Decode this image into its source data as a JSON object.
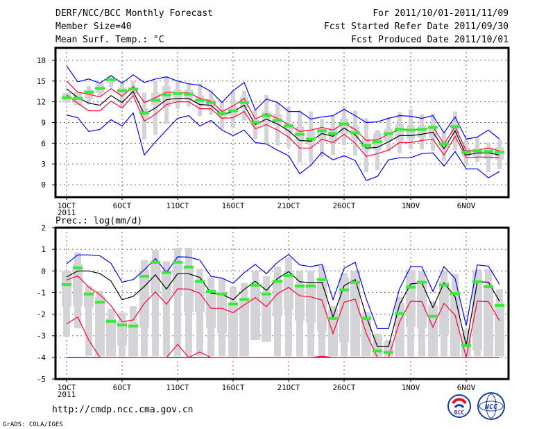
{
  "header": {
    "title": "DERF/NCC/BCC Monthly Forecast",
    "member_size": "Member Size=40",
    "variable": "Mean Surf. Temp.: °C",
    "period": "For 2011/10/01-2011/11/09",
    "started": "Fcst Started Refer Date 2011/09/30",
    "produced": "Fcst Produced Date 2011/10/01"
  },
  "footer": {
    "url": "http://cmdp.ncc.cma.gov.cn",
    "grads": "GrADS: COLA/IGES",
    "logo_bcc": "BCC",
    "logo_ncc": "NCC"
  },
  "colors": {
    "blue": "#0000ff",
    "red": "#ff0033",
    "black": "#000000",
    "green": "#33ee33",
    "gray": "#d3d3d8"
  },
  "chart_data": [
    {
      "type": "line",
      "title": "Mean Surf. Temp.: °C",
      "x_ticks": [
        {
          "day": 0,
          "label": "1OCT"
        },
        {
          "day": 5,
          "label": "6OCT"
        },
        {
          "day": 10,
          "label": "11OCT"
        },
        {
          "day": 15,
          "label": "16OCT"
        },
        {
          "day": 20,
          "label": "21OCT"
        },
        {
          "day": 25,
          "label": "26OCT"
        },
        {
          "day": 31,
          "label": "1NOV"
        },
        {
          "day": 36,
          "label": "6NOV"
        }
      ],
      "year_label": "2011",
      "y_ticks": [
        0,
        3,
        6,
        9,
        12,
        15,
        18
      ],
      "ylim": [
        -1.8,
        19.8
      ],
      "grid": true,
      "series": {
        "max": [
          17.2,
          14.9,
          15.3,
          14.7,
          15.8,
          14.7,
          15.9,
          14.8,
          15.3,
          15.6,
          15.0,
          14.6,
          14.4,
          13.5,
          11.9,
          13.6,
          14.8,
          10.8,
          12.4,
          11.9,
          10.6,
          10.6,
          9.5,
          9.8,
          10.0,
          10.9,
          10.0,
          9.0,
          9.1,
          9.6,
          10.0,
          9.9,
          9.6,
          10.0,
          7.5,
          9.8,
          6.6,
          6.9,
          7.9,
          6.6
        ],
        "upper": [
          15.0,
          13.4,
          13.1,
          12.7,
          13.9,
          12.8,
          14.2,
          11.9,
          12.6,
          13.4,
          13.3,
          13.3,
          12.5,
          12.1,
          10.6,
          11.4,
          12.5,
          9.5,
          10.3,
          9.6,
          8.7,
          7.7,
          7.9,
          8.3,
          7.9,
          8.9,
          8.0,
          6.4,
          6.5,
          7.3,
          8.0,
          8.0,
          8.0,
          8.4,
          5.9,
          8.4,
          4.9,
          5.0,
          5.3,
          4.9
        ],
        "mean": [
          13.9,
          12.6,
          11.8,
          11.5,
          12.9,
          11.9,
          13.5,
          10.2,
          11.1,
          12.3,
          12.5,
          12.5,
          11.6,
          11.5,
          10.1,
          10.6,
          11.5,
          8.7,
          9.5,
          8.8,
          7.8,
          6.4,
          6.3,
          7.4,
          7.0,
          8.2,
          7.2,
          5.3,
          5.4,
          6.2,
          7.1,
          7.1,
          7.3,
          7.6,
          5.2,
          7.8,
          4.3,
          4.6,
          4.6,
          4.3
        ],
        "lower": [
          13.0,
          11.8,
          10.7,
          10.7,
          12.1,
          11.1,
          12.9,
          9.2,
          10.2,
          11.6,
          12.0,
          12.0,
          11.0,
          11.0,
          9.6,
          9.7,
          10.6,
          8.1,
          8.7,
          7.9,
          6.9,
          5.3,
          5.3,
          6.6,
          6.1,
          7.3,
          6.0,
          4.1,
          4.5,
          5.0,
          6.1,
          6.1,
          6.4,
          6.6,
          4.3,
          7.0,
          3.9,
          4.0,
          4.0,
          3.9
        ],
        "min": [
          10.1,
          9.7,
          7.7,
          8.0,
          9.4,
          8.5,
          10.4,
          4.3,
          6.2,
          7.9,
          9.6,
          10.0,
          8.5,
          9.3,
          7.9,
          7.1,
          7.9,
          6.1,
          5.9,
          5.0,
          4.2,
          1.6,
          2.8,
          4.7,
          3.6,
          4.2,
          3.5,
          0.6,
          1.2,
          3.6,
          3.9,
          3.9,
          4.5,
          4.6,
          2.7,
          4.8,
          2.3,
          2.3,
          1.0,
          1.9
        ],
        "green": [
          12.6,
          12.5,
          13.4,
          13.95,
          15.2,
          13.6,
          13.85,
          10.4,
          12.2,
          13.0,
          13.2,
          13.1,
          12.2,
          11.9,
          10.3,
          10.7,
          11.9,
          9.0,
          10.0,
          9.3,
          8.5,
          7.3,
          6.6,
          7.8,
          7.4,
          8.8,
          7.5,
          5.7,
          6.2,
          7.4,
          8.0,
          7.9,
          8.0,
          8.3,
          5.9,
          8.4,
          4.7,
          4.9,
          4.8,
          4.7
        ],
        "gray_bar_low": [
          11.9,
          11.5,
          11.6,
          12.7,
          14.1,
          11.1,
          12.9,
          6.5,
          7.2,
          8.8,
          11.0,
          11.3,
          9.9,
          10.1,
          8.1,
          8.2,
          9.3,
          6.6,
          6.0,
          5.7,
          5.4,
          3.2,
          3.2,
          4.0,
          4.3,
          5.7,
          4.2,
          1.8,
          2.1,
          4.8,
          4.6,
          5.2,
          5.1,
          4.9,
          3.4,
          5.0,
          2.9,
          3.3,
          1.8,
          2.3
        ],
        "gray_bar_high": [
          13.3,
          13.4,
          14.3,
          14.7,
          15.8,
          14.7,
          15.0,
          13.3,
          15.1,
          15.7,
          15.2,
          14.7,
          14.7,
          13.6,
          12.1,
          13.6,
          13.6,
          10.8,
          13.0,
          11.9,
          11.3,
          10.8,
          10.6,
          9.5,
          10.0,
          11.4,
          10.7,
          9.6,
          7.9,
          9.8,
          10.5,
          10.9,
          10.2,
          10.3,
          7.6,
          10.6,
          6.5,
          6.8,
          6.1,
          6.5
        ],
        "gray_box_low": [
          11.9,
          11.5,
          12.4,
          13.3,
          14.7,
          13.0,
          13.2,
          9.7,
          11.5,
          11.3,
          12.1,
          12.3,
          11.5,
          11.3,
          9.7,
          10.0,
          11.1,
          8.5,
          8.7,
          8.6,
          7.6,
          6.2,
          5.8,
          6.5,
          6.1,
          7.3,
          6.6,
          5.0,
          5.0,
          6.3,
          6.3,
          6.6,
          6.8,
          6.8,
          5.3,
          7.3,
          4.0,
          4.0,
          3.7,
          3.6
        ],
        "gray_box_high": [
          13.3,
          13.4,
          13.7,
          14.6,
          15.5,
          14.1,
          14.0,
          11.1,
          13.3,
          14.3,
          13.8,
          13.8,
          12.9,
          12.4,
          10.9,
          11.3,
          12.7,
          9.4,
          10.6,
          10.2,
          8.9,
          8.4,
          7.8,
          8.1,
          8.3,
          9.6,
          8.5,
          6.7,
          7.5,
          8.1,
          8.8,
          8.6,
          8.6,
          8.6,
          6.2,
          8.9,
          5.4,
          5.3,
          5.4,
          5.4
        ]
      }
    },
    {
      "type": "line",
      "title": "Prec.: log(mm/d)",
      "x_ticks": [
        {
          "day": 0,
          "label": "1OCT"
        },
        {
          "day": 5,
          "label": "6OCT"
        },
        {
          "day": 10,
          "label": "11OCT"
        },
        {
          "day": 15,
          "label": "16OCT"
        },
        {
          "day": 20,
          "label": "21OCT"
        },
        {
          "day": 25,
          "label": "26OCT"
        },
        {
          "day": 31,
          "label": "1NOV"
        },
        {
          "day": 36,
          "label": "6NOV"
        }
      ],
      "year_label": "2011",
      "y_ticks": [
        -5,
        -4,
        -3,
        -2,
        -1,
        0,
        1,
        2
      ],
      "ylim": [
        -5,
        2
      ],
      "grid": true,
      "series": {
        "max": [
          0.33,
          0.74,
          0.74,
          0.7,
          0.35,
          -0.52,
          -0.4,
          0.05,
          0.57,
          -0.07,
          0.65,
          0.64,
          0.5,
          -0.25,
          -0.33,
          -0.57,
          -0.08,
          0.3,
          -0.13,
          0.4,
          0.76,
          0.28,
          0.2,
          0.3,
          -1.33,
          0.12,
          0.4,
          -1.3,
          -2.67,
          -2.67,
          -0.82,
          0.2,
          0.2,
          -0.95,
          0.2,
          -0.35,
          -2.53,
          0.28,
          0.22,
          -0.62
        ],
        "mean": [
          -0.28,
          0.0,
          0.0,
          -0.12,
          -0.47,
          -1.33,
          -1.18,
          -0.72,
          -0.18,
          -0.84,
          -0.13,
          -0.13,
          -0.3,
          -1.02,
          -1.08,
          -1.33,
          -0.85,
          -0.48,
          -0.9,
          -0.35,
          -0.03,
          -0.5,
          -0.55,
          -0.53,
          -2.13,
          -0.68,
          -0.4,
          -2.1,
          -3.5,
          -3.5,
          -1.55,
          -0.6,
          -0.55,
          -1.7,
          -0.55,
          -1.2,
          -3.45,
          -0.5,
          -0.52,
          -1.4
        ],
        "upper": [
          -0.42,
          -0.23,
          -0.75,
          -1.1,
          -1.6,
          -2.35,
          -2.27,
          -1.5,
          -0.97,
          -1.54,
          -0.83,
          -0.84,
          -1.03,
          -1.73,
          -1.73,
          -1.93,
          -1.57,
          -1.23,
          -1.65,
          -1.05,
          -0.76,
          -1.15,
          -1.2,
          -1.35,
          -2.9,
          -1.45,
          -1.3,
          -2.9,
          -4,
          -4,
          -2.35,
          -1.4,
          -1.42,
          -2.6,
          -1.5,
          -2.05,
          -4,
          -1.4,
          -1.42,
          -2.3
        ],
        "lower": [
          -2.45,
          -2.13,
          -3.2,
          -4,
          -4,
          -4,
          -4,
          -4,
          -4,
          -4,
          -3.4,
          -4,
          -3.75,
          -4,
          -4,
          -4,
          -4,
          -4,
          -4,
          -4,
          -4,
          -4,
          -4,
          -3.95,
          -4,
          -4,
          -4,
          -4,
          -4,
          -4,
          -4,
          -4,
          -4,
          -4,
          -4,
          -4,
          -4,
          -4,
          -4,
          -4
        ],
        "min": [
          -4,
          -4,
          -4,
          -4,
          -4,
          -4,
          -4,
          -4,
          -4,
          -4,
          -4,
          -4,
          -4,
          -4,
          -4,
          -4,
          -4,
          -4,
          -4,
          -4,
          -4,
          -4,
          -4,
          -4,
          -4,
          -4,
          -4,
          -4,
          -4,
          -4,
          -4,
          -4,
          -4,
          -4,
          -4,
          -4,
          -4,
          -4,
          -4,
          -4
        ],
        "green": [
          -0.63,
          0.14,
          -1.07,
          -1.45,
          -2.33,
          -2.5,
          -2.55,
          -0.25,
          0.4,
          -0.08,
          0.4,
          0.18,
          -0.48,
          -0.95,
          -1.07,
          -1.53,
          -1.32,
          -0.66,
          -1.07,
          -0.48,
          -0.22,
          -0.7,
          -0.7,
          -0.4,
          -2.2,
          -0.88,
          -0.53,
          -2.2,
          -3.7,
          -3.77,
          -1.97,
          -0.75,
          -0.52,
          -2.1,
          -0.65,
          -1.05,
          -3.45,
          -0.5,
          -0.73,
          -1.6
        ],
        "gray_bar_low": [
          -3.05,
          -2.65,
          -3.93,
          -3.95,
          -3.95,
          -3.95,
          -3.95,
          -3.95,
          -3.95,
          -3.95,
          -3.95,
          -3.95,
          -3.95,
          -3.95,
          -3.95,
          -3.95,
          -3.95,
          -3.2,
          -3.28,
          -3.95,
          -3.95,
          -3.95,
          -3.95,
          -3.95,
          -3.95,
          -3.95,
          -3.95,
          -3.95,
          -3.95,
          -3.95,
          -3.95,
          -3.95,
          -3.95,
          -3.95,
          -3.95,
          -3.95,
          -3.95,
          -3.95,
          -3.95,
          -3.95
        ],
        "gray_bar_high": [
          0.0,
          0.85,
          -0.7,
          -0.92,
          -1.75,
          -1.93,
          -1.63,
          0.5,
          0.97,
          0.45,
          1.07,
          1.07,
          0.1,
          -0.3,
          -0.35,
          -0.73,
          -0.55,
          0.0,
          -0.25,
          0.2,
          0.6,
          0.0,
          0.0,
          0.25,
          -1.63,
          -0.1,
          -0.05,
          -1.9,
          -2.9,
          -3.2,
          -1.2,
          0.05,
          0.0,
          -1.4,
          0.0,
          -0.15,
          -2.7,
          0.08,
          0.08,
          -0.85
        ],
        "gray_box_low": [
          -1.65,
          -1.62,
          -1.68,
          -3.95,
          -3.95,
          -3.45,
          -3.95,
          -2.62,
          -1.0,
          -1.27,
          -1.17,
          -1.88,
          -1.92,
          -2.62,
          -2.87,
          -3.95,
          -3.95,
          -3.2,
          -3.28,
          -2.1,
          -1.8,
          -2.3,
          -2.4,
          -2.8,
          -3.95,
          -3.3,
          -3.95,
          -3.95,
          -3.95,
          -3.95,
          -3.95,
          -2.6,
          -2.65,
          -3.95,
          -2.95,
          -3.95,
          -3.95,
          -3.65,
          -3.95,
          -3.95
        ],
        "gray_box_high": [
          0.0,
          0.3,
          -1.0,
          -1.2,
          -2.2,
          -2.3,
          -2.4,
          0.0,
          0.45,
          0.0,
          0.45,
          0.2,
          -0.4,
          -0.9,
          -1.0,
          -1.5,
          -1.3,
          -0.6,
          -1.0,
          -0.4,
          0.0,
          -0.6,
          -0.6,
          -0.5,
          -1.8,
          -0.3,
          0.0,
          -2.0,
          -3.0,
          -3.3,
          -1.5,
          0.0,
          -0.5,
          -1.6,
          -0.5,
          -1.0,
          -2.9,
          0.0,
          -0.7,
          -1.5
        ]
      }
    }
  ]
}
